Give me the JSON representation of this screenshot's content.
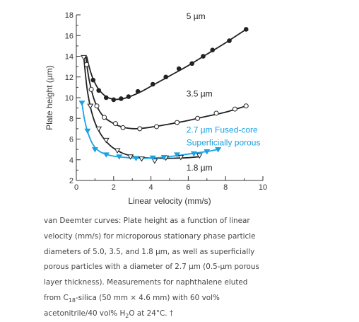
{
  "chart_data": {
    "type": "scatter",
    "xlabel": "Linear velocity (mm/s)",
    "ylabel": "Plate height (µm)",
    "xlim": [
      0,
      10
    ],
    "ylim": [
      2,
      18
    ],
    "x_ticks": [
      0,
      2,
      4,
      6,
      8,
      10
    ],
    "y_ticks": [
      2,
      4,
      6,
      8,
      10,
      12,
      14,
      16,
      18
    ],
    "grid": false,
    "series": [
      {
        "name": "5 µm",
        "marker": "filled-circle",
        "color": "#222222",
        "points": [
          [
            0.9,
            11.7
          ],
          [
            1.2,
            10.7
          ],
          [
            1.6,
            10.0
          ],
          [
            2.0,
            9.8
          ],
          [
            2.4,
            9.9
          ],
          [
            2.8,
            10.1
          ],
          [
            3.3,
            10.6
          ],
          [
            4.1,
            11.3
          ],
          [
            4.8,
            12.0
          ],
          [
            5.5,
            12.8
          ],
          [
            6.2,
            13.3
          ],
          [
            6.8,
            14.0
          ],
          [
            7.3,
            14.6
          ],
          [
            8.2,
            15.5
          ],
          [
            9.1,
            16.6
          ]
        ],
        "curve": [
          [
            0.55,
            14.0
          ],
          [
            0.7,
            12.9
          ],
          [
            0.9,
            11.8
          ],
          [
            1.2,
            10.8
          ],
          [
            1.6,
            10.1
          ],
          [
            2.0,
            9.85
          ],
          [
            2.5,
            9.9
          ],
          [
            3.0,
            10.2
          ],
          [
            3.5,
            10.6
          ],
          [
            4.0,
            11.1
          ],
          [
            5.0,
            12.1
          ],
          [
            6.0,
            13.1
          ],
          [
            7.0,
            14.2
          ],
          [
            8.0,
            15.3
          ],
          [
            9.1,
            16.6
          ]
        ]
      },
      {
        "name": "3.5 µm",
        "marker": "open-circle",
        "color": "#222222",
        "points": [
          [
            0.55,
            13.2
          ],
          [
            0.8,
            10.8
          ],
          [
            1.1,
            9.2
          ],
          [
            1.5,
            8.1
          ],
          [
            2.1,
            7.5
          ],
          [
            2.5,
            7.1
          ],
          [
            3.4,
            7.0
          ],
          [
            4.3,
            7.2
          ],
          [
            5.4,
            7.6
          ],
          [
            6.5,
            8.0
          ],
          [
            7.5,
            8.5
          ],
          [
            8.5,
            8.9
          ],
          [
            9.1,
            9.2
          ]
        ],
        "curve": [
          [
            0.5,
            14.0
          ],
          [
            0.7,
            11.6
          ],
          [
            1.0,
            9.6
          ],
          [
            1.4,
            8.3
          ],
          [
            1.9,
            7.6
          ],
          [
            2.5,
            7.15
          ],
          [
            3.2,
            7.0
          ],
          [
            4.0,
            7.15
          ],
          [
            5.0,
            7.45
          ],
          [
            6.0,
            7.8
          ],
          [
            7.0,
            8.2
          ],
          [
            8.0,
            8.6
          ],
          [
            9.1,
            9.2
          ]
        ]
      },
      {
        "name": "1.8 µm",
        "marker": "open-triangle-down",
        "color": "#222222",
        "points": [
          [
            0.4,
            13.9
          ],
          [
            0.75,
            9.2
          ],
          [
            1.2,
            7.0
          ],
          [
            1.6,
            5.9
          ],
          [
            2.2,
            4.9
          ],
          [
            2.9,
            4.3
          ],
          [
            3.5,
            4.1
          ],
          [
            4.2,
            3.9
          ],
          [
            4.8,
            4.2
          ],
          [
            5.6,
            4.25
          ],
          [
            6.6,
            4.4
          ]
        ],
        "curve": [
          [
            0.4,
            13.9
          ],
          [
            0.6,
            10.6
          ],
          [
            0.9,
            8.1
          ],
          [
            1.3,
            6.5
          ],
          [
            1.8,
            5.4
          ],
          [
            2.4,
            4.7
          ],
          [
            3.0,
            4.35
          ],
          [
            3.6,
            4.2
          ],
          [
            4.4,
            4.15
          ],
          [
            5.2,
            4.15
          ],
          [
            6.0,
            4.2
          ],
          [
            6.6,
            4.3
          ]
        ]
      },
      {
        "name": "2.7 µm Fused-core Superficially porous",
        "marker": "filled-triangle-down",
        "color": "#1ba1e2",
        "points": [
          [
            0.3,
            9.5
          ],
          [
            0.6,
            6.8
          ],
          [
            1.0,
            5.0
          ],
          [
            1.6,
            4.5
          ],
          [
            2.3,
            4.3
          ],
          [
            3.2,
            4.15
          ],
          [
            4.1,
            4.2
          ],
          [
            4.7,
            4.25
          ],
          [
            5.4,
            4.5
          ],
          [
            6.3,
            4.6
          ],
          [
            7.0,
            4.8
          ],
          [
            7.6,
            5.0
          ]
        ],
        "curve": [
          [
            0.3,
            9.5
          ],
          [
            0.45,
            7.8
          ],
          [
            0.7,
            6.2
          ],
          [
            1.0,
            5.2
          ],
          [
            1.4,
            4.65
          ],
          [
            2.0,
            4.35
          ],
          [
            2.8,
            4.2
          ],
          [
            3.6,
            4.15
          ],
          [
            4.4,
            4.2
          ],
          [
            5.2,
            4.35
          ],
          [
            6.0,
            4.55
          ],
          [
            7.0,
            4.8
          ],
          [
            7.6,
            5.0
          ]
        ]
      }
    ],
    "annotations": [
      {
        "text": "5 µm",
        "at": [
          5.9,
          17.6
        ],
        "color": "#222222"
      },
      {
        "text": "3.5 µm",
        "at": [
          5.9,
          10.1
        ],
        "color": "#222222"
      },
      {
        "text": "2.7 µm Fused-core",
        "at": [
          5.9,
          6.6
        ],
        "color": "#1ba1e2"
      },
      {
        "text": "Superficially porous",
        "at": [
          5.9,
          5.4
        ],
        "color": "#1ba1e2"
      },
      {
        "text": "1.8 µm",
        "at": [
          5.9,
          2.95
        ],
        "color": "#222222"
      }
    ]
  },
  "caption": {
    "line1": "van Deemter curves: Plate height as a function of linear",
    "line2": "velocity (mm/s) for microporous stationary phase particle",
    "line3": "diameters of 5.0, 3.5, and 1.8 µm, as well as superficially",
    "line4": "porous particles with a diameter of 2.7 µm (0.5-µm porous",
    "line5": "layer thickness). Measurements for naphthalene eluted",
    "line6_pre": "from C",
    "line6_sub": "18",
    "line6_post": "-silica (50 mm × 4.6 mm) with 60 vol%",
    "line7_pre": "acetonitrile/40 vol% H",
    "line7_sub": "2",
    "line7_post": "O at 24°C.",
    "dagger": "†"
  }
}
